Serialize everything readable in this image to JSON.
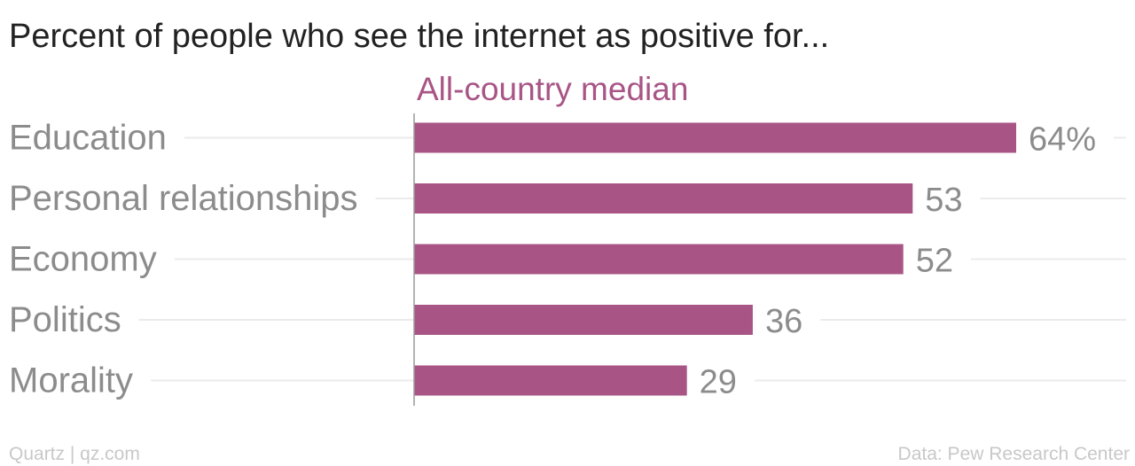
{
  "chart_data": {
    "type": "bar",
    "orientation": "horizontal",
    "title": "Percent of people who see the internet as positive for...",
    "series": [
      {
        "name": "All-country median",
        "values": [
          64,
          53,
          52,
          36,
          29
        ]
      }
    ],
    "categories": [
      "Education",
      "Personal relationships",
      "Economy",
      "Politics",
      "Morality"
    ],
    "value_labels": [
      "64%",
      "53",
      "52",
      "36",
      "29"
    ],
    "xlim": [
      0,
      100
    ],
    "grid": true,
    "legend": "top"
  },
  "footer": {
    "source_left": "Quartz | qz.com",
    "source_right": "Data: Pew Research Center"
  },
  "colors": {
    "bar": "#a85586",
    "series_label": "#a85586",
    "title": "#222222",
    "category_label": "#8c8c8c",
    "value_label": "#8c8c8c",
    "gridline": "#ebebeb",
    "axis": "#999999",
    "footer": "#c8c8c8"
  }
}
